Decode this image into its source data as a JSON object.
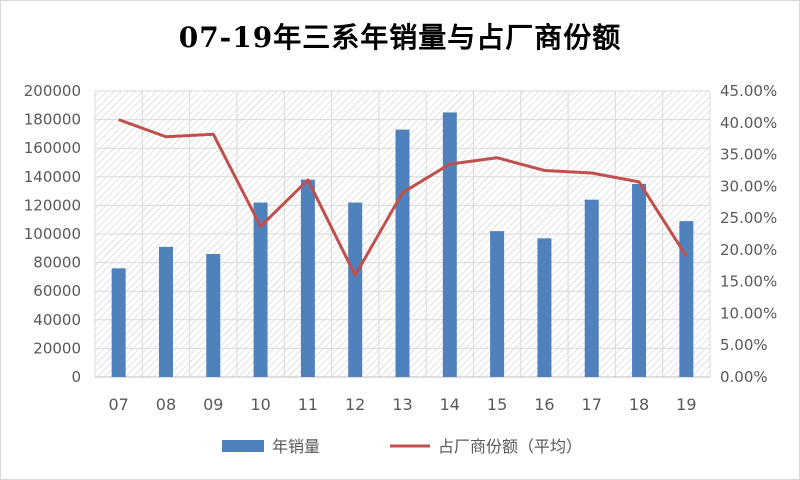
{
  "chart_data": {
    "type": "bar",
    "title": "07-19年三系年销量与占厂商份额",
    "categories": [
      "07",
      "08",
      "09",
      "10",
      "11",
      "12",
      "13",
      "14",
      "15",
      "16",
      "17",
      "18",
      "19"
    ],
    "series": [
      {
        "name": "年销量",
        "type": "bar",
        "axis": "left",
        "color": "#4f81bd",
        "values": [
          76000,
          91000,
          86000,
          122000,
          138000,
          122000,
          173000,
          185000,
          102000,
          97000,
          124000,
          135000,
          109000
        ]
      },
      {
        "name": "占厂商份额（平均）",
        "type": "line",
        "axis": "right",
        "color": "#c0504d",
        "values": [
          0.405,
          0.378,
          0.382,
          0.237,
          0.31,
          0.16,
          0.29,
          0.335,
          0.345,
          0.325,
          0.321,
          0.307,
          0.19
        ]
      }
    ],
    "y_left": {
      "min": 0,
      "max": 200000,
      "ticks": [
        "0",
        "20000",
        "40000",
        "60000",
        "80000",
        "100000",
        "120000",
        "140000",
        "160000",
        "180000",
        "200000"
      ]
    },
    "y_right": {
      "min": 0,
      "max": 0.45,
      "ticks": [
        "0.00%",
        "5.00%",
        "10.00%",
        "15.00%",
        "20.00%",
        "25.00%",
        "30.00%",
        "35.00%",
        "40.00%",
        "45.00%"
      ]
    },
    "grid": true,
    "legend_position": "bottom"
  }
}
